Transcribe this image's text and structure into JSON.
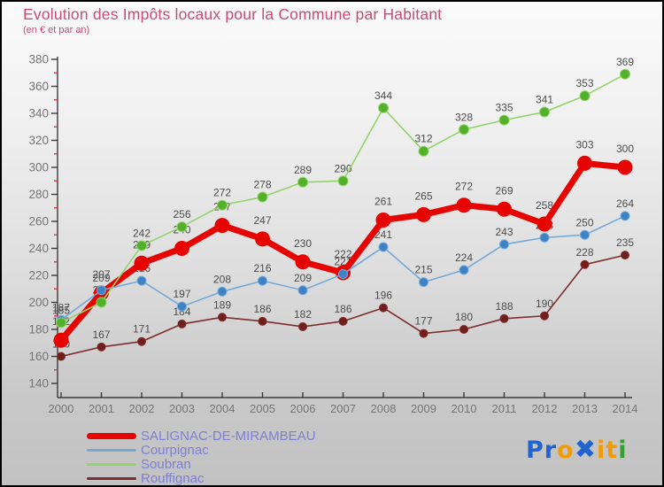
{
  "title": "Evolution des Impôts locaux pour la Commune par Habitant",
  "subtitle": "(en € et par an)",
  "theme": {
    "title_color": "#c94b76",
    "axis_color": "#3a3a3a",
    "tick_label_color": "#757575",
    "minor_tick_color": "#e23a4a",
    "data_label_color": "#4c4c4c",
    "legend_text_color": "#7e7ed4",
    "background_top": "#fbfbfb",
    "background_bottom": "#c2c2c2"
  },
  "chart_data": {
    "type": "line",
    "title": "Evolution des Impôts locaux pour la Commune par Habitant",
    "subtitle": "(en € et par an)",
    "xlabel": "",
    "ylabel": "",
    "x": [
      2000,
      2001,
      2002,
      2003,
      2004,
      2005,
      2006,
      2007,
      2008,
      2009,
      2010,
      2011,
      2012,
      2013,
      2014
    ],
    "ylim": [
      140,
      380
    ],
    "ytick_step": 20,
    "yticks": [
      140,
      160,
      180,
      200,
      220,
      240,
      260,
      280,
      300,
      320,
      340,
      360,
      380
    ],
    "grid": false,
    "legend_position": "bottom-left",
    "data_labels": true,
    "series": [
      {
        "name": "SALIGNAC-DE-MIRAMBEAU",
        "color": "#e60400",
        "line_width": 7,
        "marker_r": 8,
        "marker_fill": "#e60400",
        "marker_stroke": "#e60400",
        "label_offset": 17,
        "swatch_height": 7,
        "values": [
          172,
          207,
          229,
          240,
          257,
          247,
          230,
          222,
          261,
          265,
          272,
          269,
          258,
          303,
          300
        ]
      },
      {
        "name": "Courpignac",
        "color": "#74a9d8",
        "line_width": 1.6,
        "marker_r": 5,
        "marker_fill": "#3c82c4",
        "marker_stroke": "#74a9d8",
        "label_offset": 10,
        "swatch_height": 3,
        "values": [
          187,
          209,
          216,
          197,
          208,
          216,
          209,
          221,
          241,
          215,
          224,
          243,
          248,
          250,
          264
        ]
      },
      {
        "name": "Soubran",
        "color": "#92d36a",
        "line_width": 1.6,
        "marker_r": 5.5,
        "marker_fill": "#53b02a",
        "marker_stroke": "#92d36a",
        "label_offset": 10,
        "swatch_height": 3,
        "values": [
          185,
          200,
          242,
          256,
          272,
          278,
          289,
          290,
          344,
          312,
          328,
          335,
          341,
          353,
          369
        ]
      },
      {
        "name": "Rouffignac",
        "color": "#7d2d2b",
        "line_width": 1.6,
        "marker_r": 4.5,
        "marker_fill": "#701f1e",
        "marker_stroke": "#7d2d2b",
        "label_offset": 10,
        "swatch_height": 3,
        "values": [
          160,
          167,
          171,
          184,
          189,
          186,
          182,
          186,
          196,
          177,
          180,
          188,
          190,
          228,
          235
        ]
      }
    ]
  },
  "logo": {
    "name": "Proxiti",
    "letters": [
      {
        "ch": "P",
        "color": "#2264cd"
      },
      {
        "ch": "r",
        "color": "#2264cd"
      },
      {
        "ch": "o",
        "color": "#f49b00"
      },
      {
        "ch": "✖",
        "color": "#2264cd"
      },
      {
        "ch": "i",
        "color": "#f49b00"
      },
      {
        "ch": "t",
        "color": "#f49b00"
      },
      {
        "ch": "i",
        "color": "#2fa12e"
      }
    ]
  }
}
